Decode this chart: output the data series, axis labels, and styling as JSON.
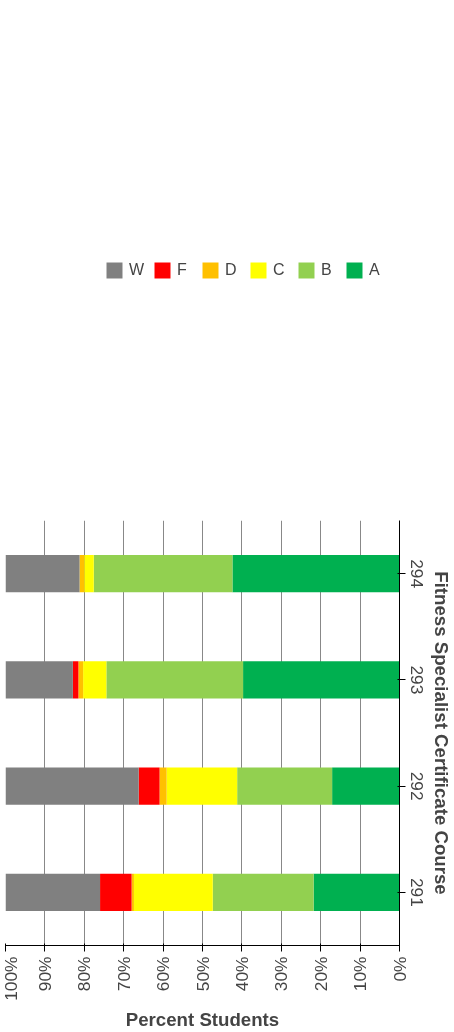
{
  "chart_data": {
    "type": "bar",
    "orientation": "horizontal",
    "stacked": true,
    "xlabel": "Percent Students",
    "ylabel": "Fitness Specialist Certificate Course",
    "categories": [
      "294",
      "293",
      "292",
      "291"
    ],
    "series": [
      {
        "name": "A",
        "color": "#00b050",
        "values": [
          42.4,
          39.7,
          17.1,
          21.8
        ]
      },
      {
        "name": "B",
        "color": "#92d050",
        "values": [
          35.2,
          34.7,
          24.1,
          25.6
        ]
      },
      {
        "name": "C",
        "color": "#ffff00",
        "values": [
          2.4,
          5.9,
          17.9,
          20
        ]
      },
      {
        "name": "D",
        "color": "#ffc000",
        "values": [
          1.2,
          1.2,
          1.8,
          0.6
        ]
      },
      {
        "name": "F",
        "color": "#ff0000",
        "values": [
          0,
          1.4,
          5.3,
          8
        ]
      },
      {
        "name": "W",
        "color": "#808080",
        "values": [
          18.8,
          17.1,
          33.8,
          24
        ]
      }
    ],
    "xlim": [
      100,
      0
    ],
    "xticks": [
      {
        "value": 100,
        "label": "100%"
      },
      {
        "value": 90,
        "label": "90%"
      },
      {
        "value": 80,
        "label": "80%"
      },
      {
        "value": 70,
        "label": "70%"
      },
      {
        "value": 60,
        "label": "60%"
      },
      {
        "value": 50,
        "label": "50%"
      },
      {
        "value": 40,
        "label": "40%"
      },
      {
        "value": 30,
        "label": "30%"
      },
      {
        "value": 20,
        "label": "20%"
      },
      {
        "value": 10,
        "label": "10%"
      },
      {
        "value": 0,
        "label": "0%"
      }
    ],
    "grid": "x",
    "legend": "top"
  }
}
